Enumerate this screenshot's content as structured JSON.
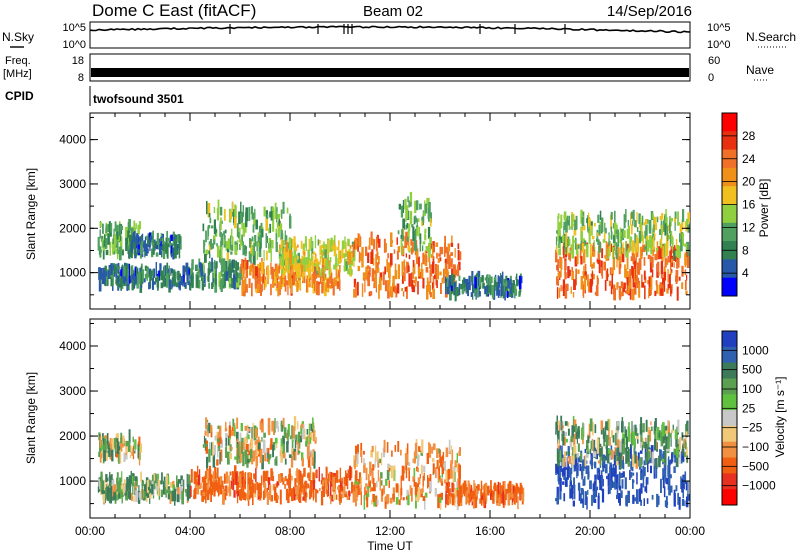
{
  "header": {
    "radar": "Dome C East (fitACF)",
    "beam": "Beam 02",
    "date": "14/Sep/2016"
  },
  "strips": {
    "nsky_label": "N.Sky",
    "nsearch_label": "N.Search",
    "freq_label_1": "Freq.",
    "freq_label_2": "[MHz]",
    "nave_label": "Nave",
    "cpid_label": "CPID",
    "cpid_text": "twofsound 3501",
    "noise_ticks_left": [
      "10^5",
      "10^0"
    ],
    "noise_ticks_right": [
      "10^5",
      "10^0"
    ],
    "freq_ticks": [
      "18",
      "8"
    ],
    "nave_ticks": [
      "60",
      "0"
    ]
  },
  "chart_data": [
    {
      "type": "heatmap",
      "name": "power-panel",
      "ylabel": "Slant Range [km]",
      "xlabel": "Time UT",
      "ylim": [
        180,
        4600
      ],
      "xlim": [
        0,
        24
      ],
      "yticks": [
        "1000",
        "2000",
        "3000",
        "4000"
      ],
      "xticks": [
        "00:00",
        "04:00",
        "08:00",
        "12:00",
        "16:00",
        "20:00",
        "00:00"
      ],
      "colorbar": {
        "label": "Power [dB]",
        "ticks": [
          "28",
          "24",
          "20",
          "16",
          "12",
          "8",
          "4"
        ],
        "colors": [
          "#ff0000",
          "#e83010",
          "#f07028",
          "#f09018",
          "#f0c020",
          "#90d040",
          "#50a060",
          "#308050",
          "#2858a8",
          "#0000ff"
        ]
      },
      "blobs": [
        {
          "t0": 0.3,
          "t1": 1.5,
          "r0": 700,
          "r1": 1100,
          "v": 8
        },
        {
          "t0": 0.3,
          "t1": 2.0,
          "r0": 1400,
          "r1": 2100,
          "v": 12
        },
        {
          "t0": 1.5,
          "t1": 3.6,
          "r0": 1400,
          "r1": 1800,
          "v": 8
        },
        {
          "t0": 1.0,
          "t1": 4.0,
          "r0": 700,
          "r1": 1100,
          "v": 8
        },
        {
          "t0": 4.0,
          "t1": 6.0,
          "r0": 700,
          "r1": 1200,
          "v": 10
        },
        {
          "t0": 4.5,
          "t1": 8.0,
          "r0": 1300,
          "r1": 2500,
          "v": 13
        },
        {
          "t0": 6.0,
          "t1": 10.0,
          "r0": 600,
          "r1": 1200,
          "v": 22
        },
        {
          "t0": 7.5,
          "t1": 10.6,
          "r0": 1000,
          "r1": 1700,
          "v": 17
        },
        {
          "t0": 10.5,
          "t1": 14.8,
          "r0": 500,
          "r1": 1800,
          "v": 24
        },
        {
          "t0": 12.3,
          "t1": 13.6,
          "r0": 1500,
          "r1": 2700,
          "v": 13
        },
        {
          "t0": 14.2,
          "t1": 17.3,
          "r0": 500,
          "r1": 900,
          "v": 8
        },
        {
          "t0": 18.6,
          "t1": 23.9,
          "r0": 500,
          "r1": 1600,
          "v": 24
        },
        {
          "t0": 18.6,
          "t1": 23.9,
          "r0": 1400,
          "r1": 2300,
          "v": 14
        }
      ]
    },
    {
      "type": "heatmap",
      "name": "velocity-panel",
      "ylabel": "Slant Range [km]",
      "xlabel": "Time UT",
      "ylim": [
        180,
        4600
      ],
      "xlim": [
        0,
        24
      ],
      "yticks": [
        "1000",
        "2000",
        "3000",
        "4000"
      ],
      "xticks": [
        "00:00",
        "04:00",
        "08:00",
        "12:00",
        "16:00",
        "20:00",
        "00:00"
      ],
      "colorbar": {
        "label": "Velocity [m s⁻¹]",
        "ticks": [
          "1000",
          "500",
          "100",
          "25",
          "−25",
          "−100",
          "−500",
          "−1000"
        ],
        "colors": [
          "#2040c0",
          "#3060b0",
          "#3d7a5a",
          "#5aa050",
          "#60c040",
          "#c8c8c8",
          "#f0c878",
          "#f09040",
          "#f06010",
          "#e83020",
          "#ff0000"
        ]
      },
      "blobs": [
        {
          "t0": 0.3,
          "t1": 2.0,
          "r0": 1500,
          "r1": 2000,
          "v": 25
        },
        {
          "t0": 0.3,
          "t1": 4.0,
          "r0": 600,
          "r1": 1100,
          "v": 150
        },
        {
          "t0": 4.0,
          "t1": 10.6,
          "r0": 600,
          "r1": 1200,
          "v": -300
        },
        {
          "t0": 4.5,
          "t1": 9.0,
          "r0": 1400,
          "r1": 2300,
          "v": 20
        },
        {
          "t0": 10.5,
          "t1": 14.8,
          "r0": 500,
          "r1": 1800,
          "v": -150
        },
        {
          "t0": 14.2,
          "t1": 17.3,
          "r0": 500,
          "r1": 900,
          "v": -300
        },
        {
          "t0": 18.6,
          "t1": 23.9,
          "r0": 500,
          "r1": 1700,
          "v": 900
        },
        {
          "t0": 18.6,
          "t1": 23.9,
          "r0": 1400,
          "r1": 2300,
          "v": 150
        }
      ]
    }
  ]
}
